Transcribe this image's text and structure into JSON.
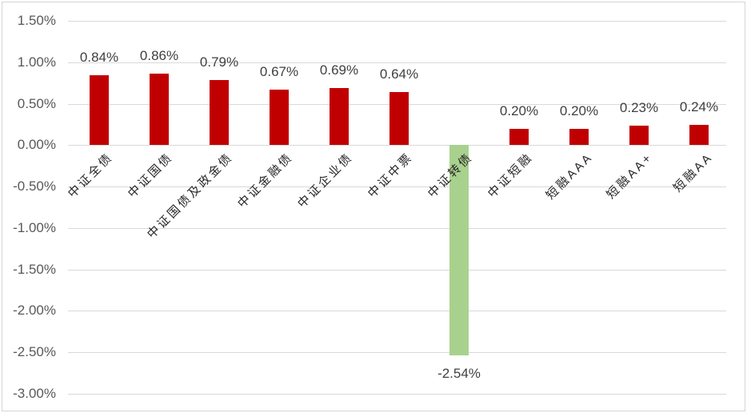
{
  "chart_data": {
    "type": "bar",
    "title": "",
    "categories": [
      "中证全债",
      "中证国债",
      "中证国债及政金债",
      "中证金融债",
      "中证企业债",
      "中证中票",
      "中证转债",
      "中证短融",
      "短融AAA",
      "短融AA+",
      "短融AA"
    ],
    "values": [
      0.84,
      0.86,
      0.79,
      0.67,
      0.69,
      0.64,
      -2.54,
      0.2,
      0.2,
      0.23,
      0.24
    ],
    "data_labels": [
      "0.84%",
      "0.86%",
      "0.79%",
      "0.67%",
      "0.69%",
      "0.64%",
      "-2.54%",
      "0.20%",
      "0.20%",
      "0.23%",
      "0.24%"
    ],
    "y_ticks": [
      "1.50%",
      "1.00%",
      "0.50%",
      "0.00%",
      "-0.50%",
      "-1.00%",
      "-1.50%",
      "-2.00%",
      "-2.50%",
      "-3.00%"
    ],
    "y_tick_values": [
      1.5,
      1.0,
      0.5,
      0.0,
      -0.5,
      -1.0,
      -1.5,
      -2.0,
      -2.5,
      -3.0
    ],
    "ylim": [
      -3.0,
      1.5
    ],
    "xlabel": "",
    "ylabel": "",
    "grid": "horizontal",
    "legend": "none",
    "colors": {
      "positive_bar": "#c00000",
      "negative_bar": "#a9d18e",
      "gridline": "#d9d9d9",
      "axis_label": "#595959",
      "data_label": "#404040",
      "category_label": "#262626",
      "background": "#ffffff",
      "border": "#d6d6d6"
    }
  }
}
